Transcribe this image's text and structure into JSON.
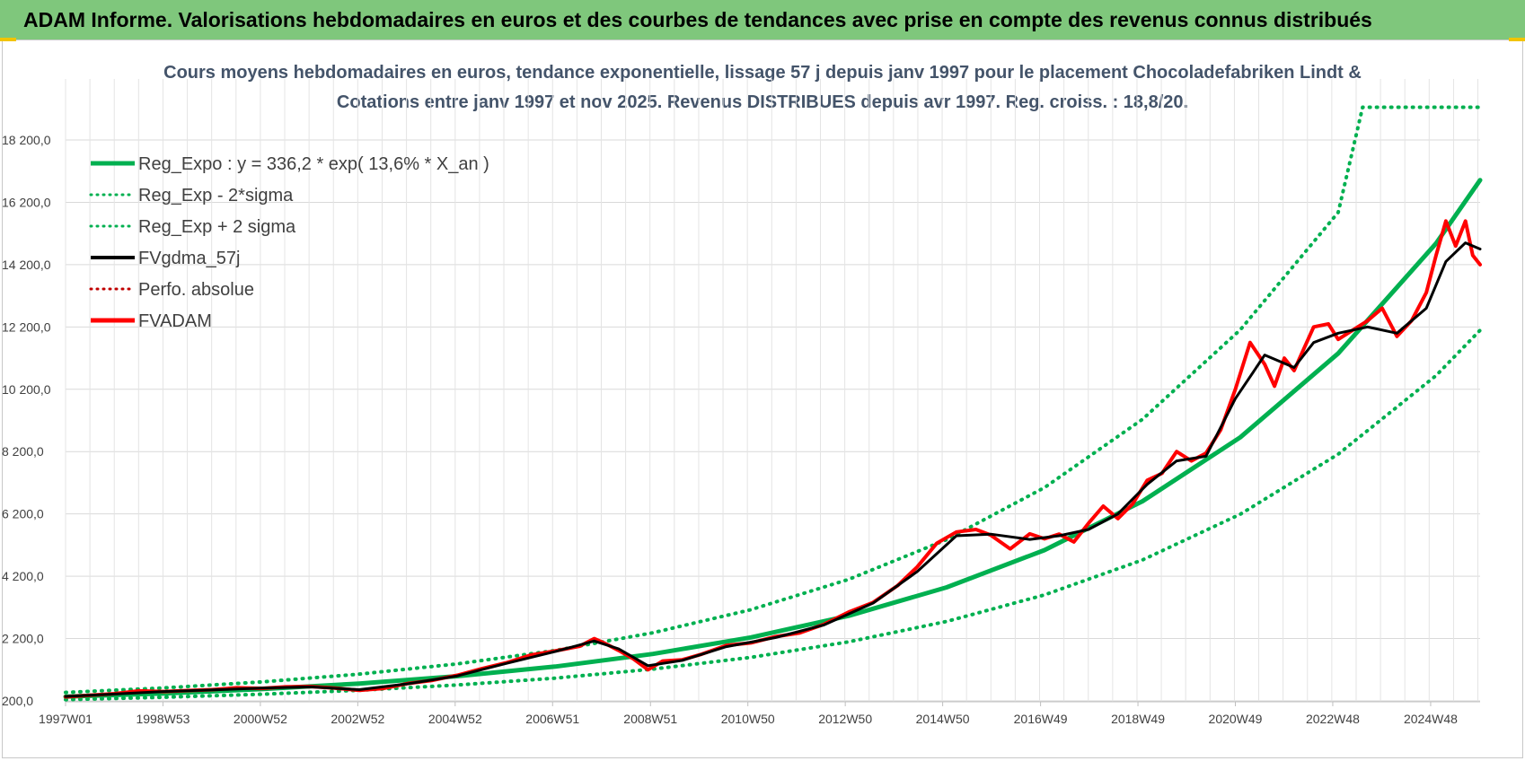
{
  "header": {
    "banner": "ADAM Informe. Valorisations hebdomadaires en euros et des courbes de tendances avec prise en compte des revenus connus distribués"
  },
  "colors": {
    "banner_bg": "#7fc77c",
    "reg_expo": "#00b050",
    "fvgdma": "#000000",
    "fvadam": "#ff0000",
    "perfo": "#c00000",
    "title": "#44546a"
  },
  "chart_data": {
    "type": "line",
    "title_line1": "Cours moyens hebdomadaires en euros, tendance exponentielle, lissage 57 j depuis janv 1997 pour le placement Chocoladefabriken Lindt &",
    "title_line2": "Cotations entre janv 1997 et nov 2025. Revenus DISTRIBUES depuis avr 1997. Reg. croiss. : 18,8/20.",
    "ylim": [
      200,
      20000
    ],
    "yticks": [
      200,
      2200,
      4200,
      6200,
      8200,
      10200,
      12200,
      14200,
      16200,
      18200
    ],
    "ytick_labels": [
      "200,0",
      "2 200,0",
      "4 200,0",
      "6 200,0",
      "8 200,0",
      "10 200,0",
      "12 200,0",
      "14 200,0",
      "16 200,0",
      "18 200,0"
    ],
    "xlim": [
      1997.0,
      2025.9
    ],
    "xticks": [
      1997.0,
      1998.99,
      2000.98,
      2002.97,
      2004.96,
      2006.95,
      2008.95,
      2010.94,
      2012.93,
      2014.92,
      2016.92,
      2018.91,
      2020.9,
      2022.89,
      2024.89
    ],
    "xtick_labels": [
      "1997W01",
      "1998W53",
      "2000W52",
      "2002W52",
      "2004W52",
      "2006W51",
      "2008W51",
      "2010W50",
      "2012W50",
      "2014W50",
      "2016W49",
      "2018W49",
      "2020W49",
      "2022W48",
      "2024W48"
    ],
    "grid": true,
    "legend_position": "top-left",
    "legend": [
      {
        "name": "Reg_Expo : y = 336,2 * exp( 13,6% *  X_an )",
        "style": "solid",
        "color": "#00b050"
      },
      {
        "name": "Reg_Exp - 2*sigma",
        "style": "dotted",
        "color": "#00b050"
      },
      {
        "name": "Reg_Exp + 2 sigma",
        "style": "dotted",
        "color": "#00b050"
      },
      {
        "name": "FVgdma_57j",
        "style": "solid",
        "color": "#000000"
      },
      {
        "name": "Perfo. absolue",
        "style": "dotted",
        "color": "#c00000"
      },
      {
        "name": "FVADAM",
        "style": "solid",
        "color": "#ff0000"
      }
    ],
    "series": [
      {
        "name": "Reg_Expo",
        "x": [
          1997.0,
          1999.0,
          2001.0,
          2003.0,
          2005.0,
          2007.0,
          2009.0,
          2011.0,
          2013.0,
          2015.0,
          2017.0,
          2019.0,
          2021.0,
          2023.0,
          2025.0,
          2025.9
        ],
        "values": [
          336,
          440,
          577,
          757,
          992,
          1301,
          1705,
          2236,
          2931,
          3843,
          5038,
          6605,
          8659,
          11352,
          14883,
          16914
        ]
      },
      {
        "name": "Reg_Exp - 2*sigma",
        "x": [
          1997.0,
          1999.0,
          2001.0,
          2003.0,
          2005.0,
          2007.0,
          2009.0,
          2011.0,
          2013.0,
          2015.0,
          2017.0,
          2019.0,
          2021.0,
          2023.0,
          2025.0,
          2025.9
        ],
        "values": [
          240,
          315,
          413,
          541,
          709,
          930,
          1219,
          1598,
          2096,
          2748,
          3602,
          4722,
          6191,
          8117,
          10641,
          12093
        ]
      },
      {
        "name": "Reg_Exp + 2 sigma",
        "x": [
          1997.0,
          1999.0,
          2001.0,
          2003.0,
          2005.0,
          2007.0,
          2009.0,
          2011.0,
          2013.0,
          2015.0,
          2017.0,
          2019.0,
          2021.0,
          2023.0,
          2023.5,
          2025.9
        ],
        "values": [
          470,
          616,
          807,
          1058,
          1387,
          1819,
          2385,
          3126,
          4099,
          5374,
          7045,
          9236,
          12109,
          15875,
          19250,
          19250
        ]
      },
      {
        "name": "FVADAM",
        "x": [
          1997.0,
          1997.5,
          1998.0,
          1998.5,
          1999.0,
          1999.5,
          2000.0,
          2000.5,
          2001.0,
          2001.5,
          2002.0,
          2002.5,
          2003.0,
          2003.5,
          2004.0,
          2004.5,
          2005.0,
          2005.5,
          2006.0,
          2006.5,
          2007.0,
          2007.5,
          2007.8,
          2008.0,
          2008.3,
          2008.6,
          2008.9,
          2009.2,
          2009.6,
          2010.0,
          2010.5,
          2011.0,
          2011.5,
          2012.0,
          2012.5,
          2013.0,
          2013.5,
          2014.0,
          2014.4,
          2014.8,
          2015.2,
          2015.6,
          2015.9,
          2016.3,
          2016.7,
          2017.0,
          2017.3,
          2017.6,
          2017.9,
          2018.2,
          2018.5,
          2018.8,
          2019.1,
          2019.4,
          2019.7,
          2020.0,
          2020.3,
          2020.6,
          2020.9,
          2021.2,
          2021.5,
          2021.7,
          2021.9,
          2022.1,
          2022.3,
          2022.5,
          2022.8,
          2023.0,
          2023.3,
          2023.6,
          2023.9,
          2024.2,
          2024.5,
          2024.8,
          2025.0,
          2025.2,
          2025.4,
          2025.6,
          2025.75,
          2025.9
        ],
        "values": [
          330,
          380,
          430,
          520,
          500,
          530,
          560,
          620,
          600,
          650,
          660,
          610,
          540,
          600,
          760,
          860,
          1020,
          1230,
          1420,
          1670,
          1800,
          1950,
          2200,
          2060,
          1820,
          1550,
          1200,
          1480,
          1520,
          1700,
          1980,
          2060,
          2260,
          2380,
          2660,
          3050,
          3360,
          3900,
          4500,
          5260,
          5620,
          5700,
          5520,
          5080,
          5560,
          5400,
          5550,
          5300,
          5900,
          6450,
          6050,
          6520,
          7280,
          7500,
          8200,
          7900,
          8150,
          8900,
          10200,
          11700,
          11000,
          10300,
          11200,
          10800,
          11500,
          12200,
          12300,
          11800,
          12100,
          12400,
          12800,
          11900,
          12400,
          13300,
          14500,
          15600,
          14800,
          15600,
          14500,
          14200
        ]
      },
      {
        "name": "FVgdma_57j",
        "x": [
          1997.0,
          1998.0,
          1999.0,
          2000.0,
          2001.0,
          2002.0,
          2003.0,
          2004.0,
          2005.0,
          2006.0,
          2007.0,
          2007.8,
          2008.3,
          2008.9,
          2009.6,
          2010.5,
          2011.5,
          2012.5,
          2013.5,
          2014.4,
          2015.2,
          2015.9,
          2016.7,
          2017.3,
          2017.9,
          2018.5,
          2019.1,
          2019.7,
          2020.3,
          2020.9,
          2021.5,
          2022.1,
          2022.5,
          2023.0,
          2023.6,
          2024.2,
          2024.8,
          2025.2,
          2025.6,
          2025.9
        ],
        "values": [
          340,
          420,
          500,
          550,
          610,
          650,
          560,
          750,
          1000,
          1400,
          1780,
          2120,
          1870,
          1330,
          1500,
          1940,
          2230,
          2640,
          3340,
          4350,
          5500,
          5550,
          5380,
          5500,
          5700,
          6200,
          7150,
          7900,
          8050,
          9900,
          11300,
          10900,
          11700,
          12000,
          12200,
          12000,
          12800,
          14300,
          14900,
          14700
        ]
      }
    ]
  }
}
